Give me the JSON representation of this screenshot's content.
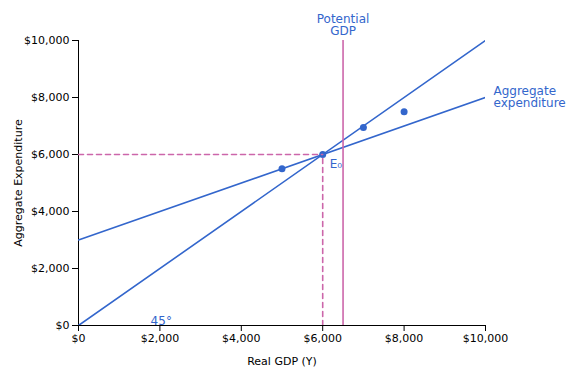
{
  "chart_data": {
    "type": "line",
    "title": "",
    "xlabel": "Real GDP (Y)",
    "ylabel": "Aggregate Expenditure",
    "xlim": [
      0,
      10000
    ],
    "ylim": [
      0,
      10000
    ],
    "xticks": [
      {
        "value": 0,
        "label": "$0"
      },
      {
        "value": 2000,
        "label": "$2,000"
      },
      {
        "value": 4000,
        "label": "$4,000"
      },
      {
        "value": 6000,
        "label": "$6,000"
      },
      {
        "value": 8000,
        "label": "$8,000"
      },
      {
        "value": 10000,
        "label": "$10,000"
      }
    ],
    "yticks": [
      {
        "value": 0,
        "label": "$0"
      },
      {
        "value": 2000,
        "label": "$2,000"
      },
      {
        "value": 4000,
        "label": "$4,000"
      },
      {
        "value": 6000,
        "label": "$6,000"
      },
      {
        "value": 8000,
        "label": "$8,000"
      },
      {
        "value": 10000,
        "label": "$10,000"
      }
    ],
    "grid": false,
    "series": [
      {
        "type": "line",
        "color": "#3366cc",
        "line_style": "solid",
        "x": [
          0,
          10000
        ],
        "values": [
          0,
          10000
        ]
      },
      {
        "type": "line",
        "color": "#3366cc",
        "line_style": "solid",
        "x": [
          0,
          10000
        ],
        "values": [
          3000,
          8000
        ]
      },
      {
        "type": "scatter",
        "color": "#3366cc",
        "marker": "circle",
        "x": [
          5000,
          6000,
          7000,
          8000
        ],
        "values": [
          5500,
          6000,
          6950,
          7500
        ]
      },
      {
        "type": "line",
        "color": "#cc66aa",
        "line_style": "dashed",
        "x": [
          0,
          6000
        ],
        "values": [
          6000,
          6000
        ]
      },
      {
        "type": "line",
        "color": "#cc66aa",
        "line_style": "dashed",
        "x": [
          6000,
          6000
        ],
        "values": [
          0,
          6000
        ]
      },
      {
        "type": "line",
        "color": "#cc66aa",
        "line_style": "solid",
        "x": [
          6500,
          6500
        ],
        "values": [
          0,
          10000
        ]
      }
    ],
    "annotations": [
      {
        "text": "Potential\nGDP",
        "x": 6500,
        "y": 10000
      },
      {
        "text": "E₀",
        "x": 6000,
        "y": 6000
      },
      {
        "text": "45°",
        "x": 1600,
        "y": 500
      },
      {
        "text": "Aggregate\nexpenditure",
        "x": 10000,
        "y": 8000
      }
    ]
  }
}
